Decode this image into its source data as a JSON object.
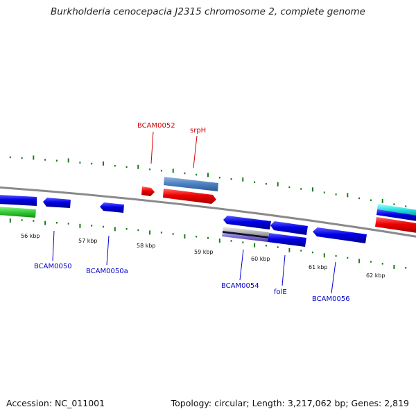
{
  "title": "Burkholderia cenocepacia J2315 chromosome 2, complete genome",
  "footer": {
    "accession": "Accession: NC_011001",
    "summary": "Topology: circular; Length: 3,217,062 bp; Genes: 2,819"
  },
  "colors": {
    "backbone": "#8a8a8a",
    "tick": "#1a7a1a",
    "forward_gene": "#ee0000",
    "reverse_gene": "#0000e6",
    "forward_label": "#cc0000",
    "reverse_label": "#0000cc",
    "steelblue_feature": "#4a7fc0",
    "green_feature": "#33cc33",
    "cyan_feature": "#22dddd",
    "grey_feature": "#b8b8b8",
    "purple_feature": "#7766cc"
  },
  "ticks": [
    {
      "label": "56 kbp"
    },
    {
      "label": "57 kbp"
    },
    {
      "label": "58 kbp"
    },
    {
      "label": "59 kbp"
    },
    {
      "label": "60 kbp"
    },
    {
      "label": "61 kbp"
    },
    {
      "label": "62 kbp"
    }
  ],
  "genes": [
    {
      "name": "BCAM0050",
      "strand": "reverse"
    },
    {
      "name": "BCAM0050a",
      "strand": "reverse"
    },
    {
      "name": "BCAM0052",
      "strand": "forward"
    },
    {
      "name": "srpH",
      "strand": "forward"
    },
    {
      "name": "BCAM0054",
      "strand": "reverse"
    },
    {
      "name": "folE",
      "strand": "reverse"
    },
    {
      "name": "BCAM0056",
      "strand": "reverse"
    }
  ]
}
